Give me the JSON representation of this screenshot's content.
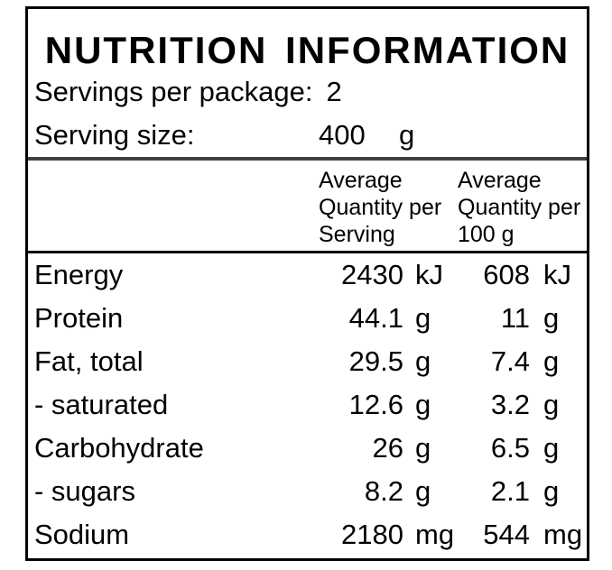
{
  "panel": {
    "title": "NUTRITION INFORMATION",
    "servings_per_package": {
      "label": "Servings per package:",
      "value": "2"
    },
    "serving_size": {
      "label": "Serving size:",
      "value": "400",
      "unit": "g"
    },
    "column_headers": {
      "per_serving": "Average\nQuantity per\nServing",
      "per_100g": "Average\nQuantity per\n100 g"
    },
    "rows": [
      {
        "label": "Energy",
        "per_serving": "2430",
        "per_serving_unit": "kJ",
        "per_100g": "608",
        "per_100g_unit": "kJ"
      },
      {
        "label": "Protein",
        "per_serving": "44.1",
        "per_serving_unit": "g",
        "per_100g": "11",
        "per_100g_unit": "g"
      },
      {
        "label": "Fat, total",
        "per_serving": "29.5",
        "per_serving_unit": "g",
        "per_100g": "7.4",
        "per_100g_unit": "g"
      },
      {
        "label": "- saturated",
        "per_serving": "12.6",
        "per_serving_unit": "g",
        "per_100g": "3.2",
        "per_100g_unit": "g"
      },
      {
        "label": "Carbohydrate",
        "per_serving": "26",
        "per_serving_unit": "g",
        "per_100g": "6.5",
        "per_100g_unit": "g"
      },
      {
        "label": "- sugars",
        "per_serving": "8.2",
        "per_serving_unit": "g",
        "per_100g": "2.1",
        "per_100g_unit": "g"
      },
      {
        "label": "Sodium",
        "per_serving": "2180",
        "per_serving_unit": "mg",
        "per_100g": "544",
        "per_100g_unit": "mg"
      }
    ],
    "colors": {
      "text": "#000000",
      "border": "#000000",
      "thick_rule": "#414141",
      "background": "#ffffff"
    }
  }
}
